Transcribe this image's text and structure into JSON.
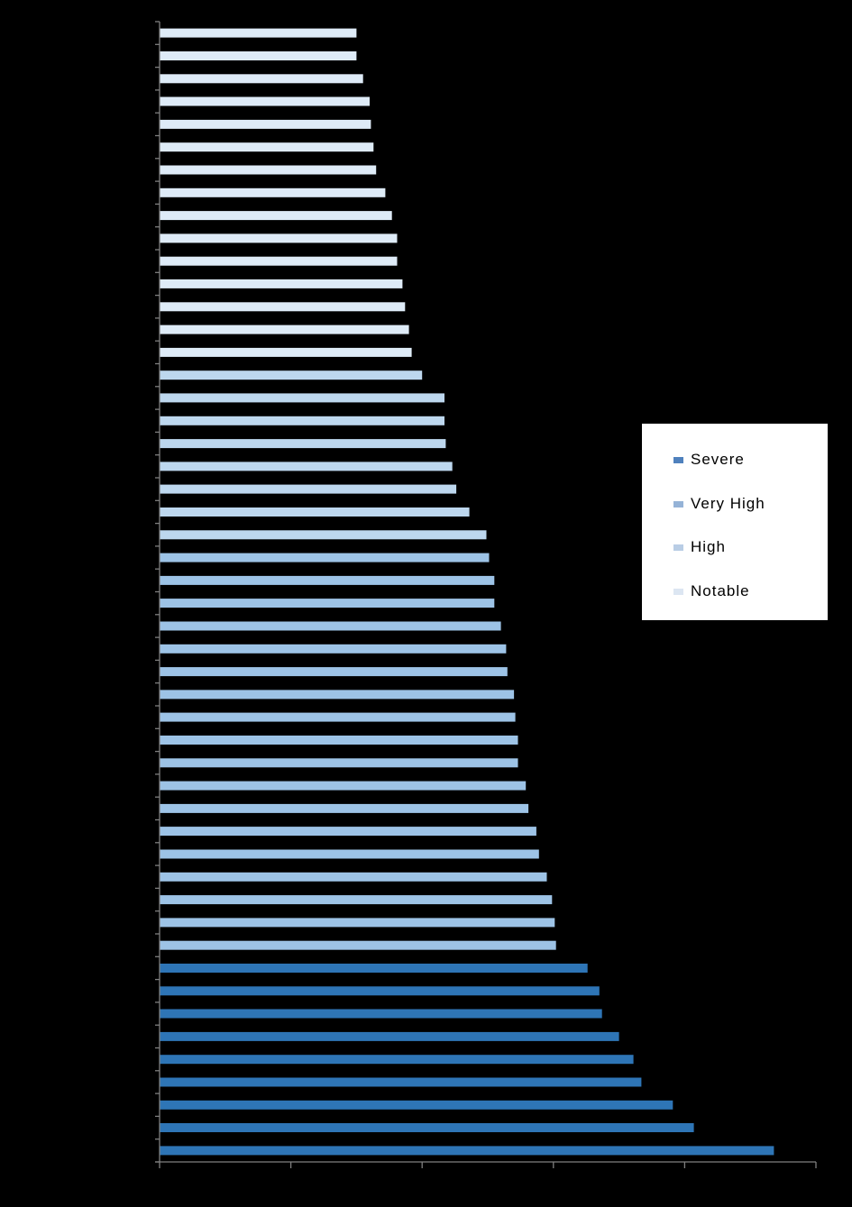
{
  "chart_data": {
    "type": "bar",
    "orientation": "horizontal",
    "title": "",
    "xlabel": "",
    "ylabel": "",
    "x_tick_labels": [],
    "y_tick_labels": [],
    "xlim": [
      0,
      5
    ],
    "x_ticks": [
      0,
      1,
      2,
      3,
      4,
      5
    ],
    "grid": false,
    "legend_position": "right",
    "categories_count": 50,
    "series": [
      {
        "name": "Severe",
        "color": "#2e75b6",
        "legend_color": "#4f81bd"
      },
      {
        "name": "Very High",
        "color": "#9dc3e6",
        "legend_color": "#95b3d7"
      },
      {
        "name": "High",
        "color": "#bdd7ee",
        "legend_color": "#b9cde5"
      },
      {
        "name": "Notable",
        "color": "#deebf7",
        "legend_color": "#dce6f2"
      }
    ],
    "bars": [
      {
        "rank": 1,
        "series": "Notable",
        "value": 1.5
      },
      {
        "rank": 2,
        "series": "Notable",
        "value": 1.5
      },
      {
        "rank": 3,
        "series": "Notable",
        "value": 1.55
      },
      {
        "rank": 4,
        "series": "Notable",
        "value": 1.6
      },
      {
        "rank": 5,
        "series": "Notable",
        "value": 1.61
      },
      {
        "rank": 6,
        "series": "Notable",
        "value": 1.63
      },
      {
        "rank": 7,
        "series": "Notable",
        "value": 1.65
      },
      {
        "rank": 8,
        "series": "Notable",
        "value": 1.72
      },
      {
        "rank": 9,
        "series": "Notable",
        "value": 1.77
      },
      {
        "rank": 10,
        "series": "Notable",
        "value": 1.81
      },
      {
        "rank": 11,
        "series": "Notable",
        "value": 1.81
      },
      {
        "rank": 12,
        "series": "Notable",
        "value": 1.85
      },
      {
        "rank": 13,
        "series": "Notable",
        "value": 1.87
      },
      {
        "rank": 14,
        "series": "Notable",
        "value": 1.9
      },
      {
        "rank": 15,
        "series": "Notable",
        "value": 1.92
      },
      {
        "rank": 16,
        "series": "High",
        "value": 2.0
      },
      {
        "rank": 17,
        "series": "High",
        "value": 2.17
      },
      {
        "rank": 18,
        "series": "High",
        "value": 2.17
      },
      {
        "rank": 19,
        "series": "High",
        "value": 2.18
      },
      {
        "rank": 20,
        "series": "High",
        "value": 2.23
      },
      {
        "rank": 21,
        "series": "High",
        "value": 2.26
      },
      {
        "rank": 22,
        "series": "High",
        "value": 2.36
      },
      {
        "rank": 23,
        "series": "High",
        "value": 2.49
      },
      {
        "rank": 24,
        "series": "Very High",
        "value": 2.51
      },
      {
        "rank": 25,
        "series": "Very High",
        "value": 2.55
      },
      {
        "rank": 26,
        "series": "Very High",
        "value": 2.55
      },
      {
        "rank": 27,
        "series": "Very High",
        "value": 2.6
      },
      {
        "rank": 28,
        "series": "Very High",
        "value": 2.64
      },
      {
        "rank": 29,
        "series": "Very High",
        "value": 2.65
      },
      {
        "rank": 30,
        "series": "Very High",
        "value": 2.7
      },
      {
        "rank": 31,
        "series": "Very High",
        "value": 2.71
      },
      {
        "rank": 32,
        "series": "Very High",
        "value": 2.73
      },
      {
        "rank": 33,
        "series": "Very High",
        "value": 2.73
      },
      {
        "rank": 34,
        "series": "Very High",
        "value": 2.79
      },
      {
        "rank": 35,
        "series": "Very High",
        "value": 2.81
      },
      {
        "rank": 36,
        "series": "Very High",
        "value": 2.87
      },
      {
        "rank": 37,
        "series": "Very High",
        "value": 2.89
      },
      {
        "rank": 38,
        "series": "Very High",
        "value": 2.95
      },
      {
        "rank": 39,
        "series": "Very High",
        "value": 2.99
      },
      {
        "rank": 40,
        "series": "Very High",
        "value": 3.01
      },
      {
        "rank": 41,
        "series": "Very High",
        "value": 3.02
      },
      {
        "rank": 42,
        "series": "Severe",
        "value": 3.26
      },
      {
        "rank": 43,
        "series": "Severe",
        "value": 3.35
      },
      {
        "rank": 44,
        "series": "Severe",
        "value": 3.37
      },
      {
        "rank": 45,
        "series": "Severe",
        "value": 3.5
      },
      {
        "rank": 46,
        "series": "Severe",
        "value": 3.61
      },
      {
        "rank": 47,
        "series": "Severe",
        "value": 3.67
      },
      {
        "rank": 48,
        "series": "Severe",
        "value": 3.91
      },
      {
        "rank": 49,
        "series": "Severe",
        "value": 4.07
      },
      {
        "rank": 50,
        "series": "Severe",
        "value": 4.68
      }
    ]
  },
  "legend": {
    "items": [
      {
        "label": "Severe",
        "color": "#4f81bd"
      },
      {
        "label": "Very High",
        "color": "#95b3d7"
      },
      {
        "label": "High",
        "color": "#b9cde5"
      },
      {
        "label": "Notable",
        "color": "#dce6f2"
      }
    ]
  },
  "style": {
    "background": "#000000",
    "axis_color": "#7f7f7f"
  }
}
